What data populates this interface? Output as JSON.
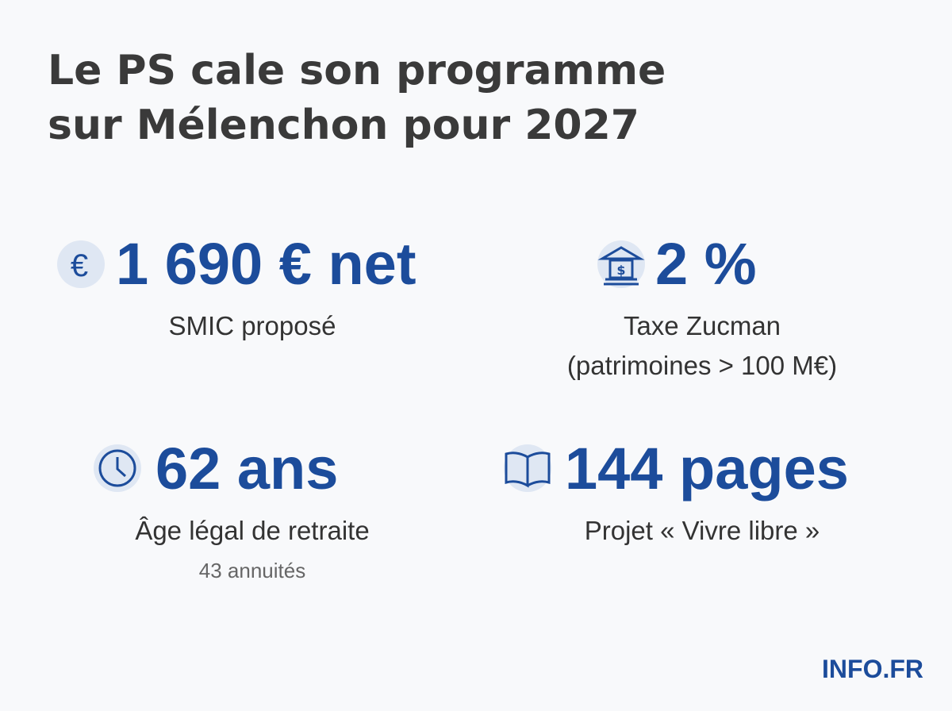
{
  "header": {
    "title": [
      "Le PS cale son programme",
      "sur Mélenchon pour 2027"
    ]
  },
  "stats": [
    {
      "value": "1 690 € net",
      "label": [
        "SMIC proposé"
      ]
    },
    {
      "value": "2 %",
      "label": [
        "Taxe Zucman",
        "(patrimoines > 100 M€)"
      ]
    },
    {
      "value": "62 ans",
      "label": [
        "Âge légal de retraite"
      ],
      "note": "43 annuités"
    },
    {
      "value": "144 pages",
      "label": [
        "Projet « Vivre libre »"
      ]
    }
  ],
  "footer": {
    "brand": "INFO.FR"
  }
}
